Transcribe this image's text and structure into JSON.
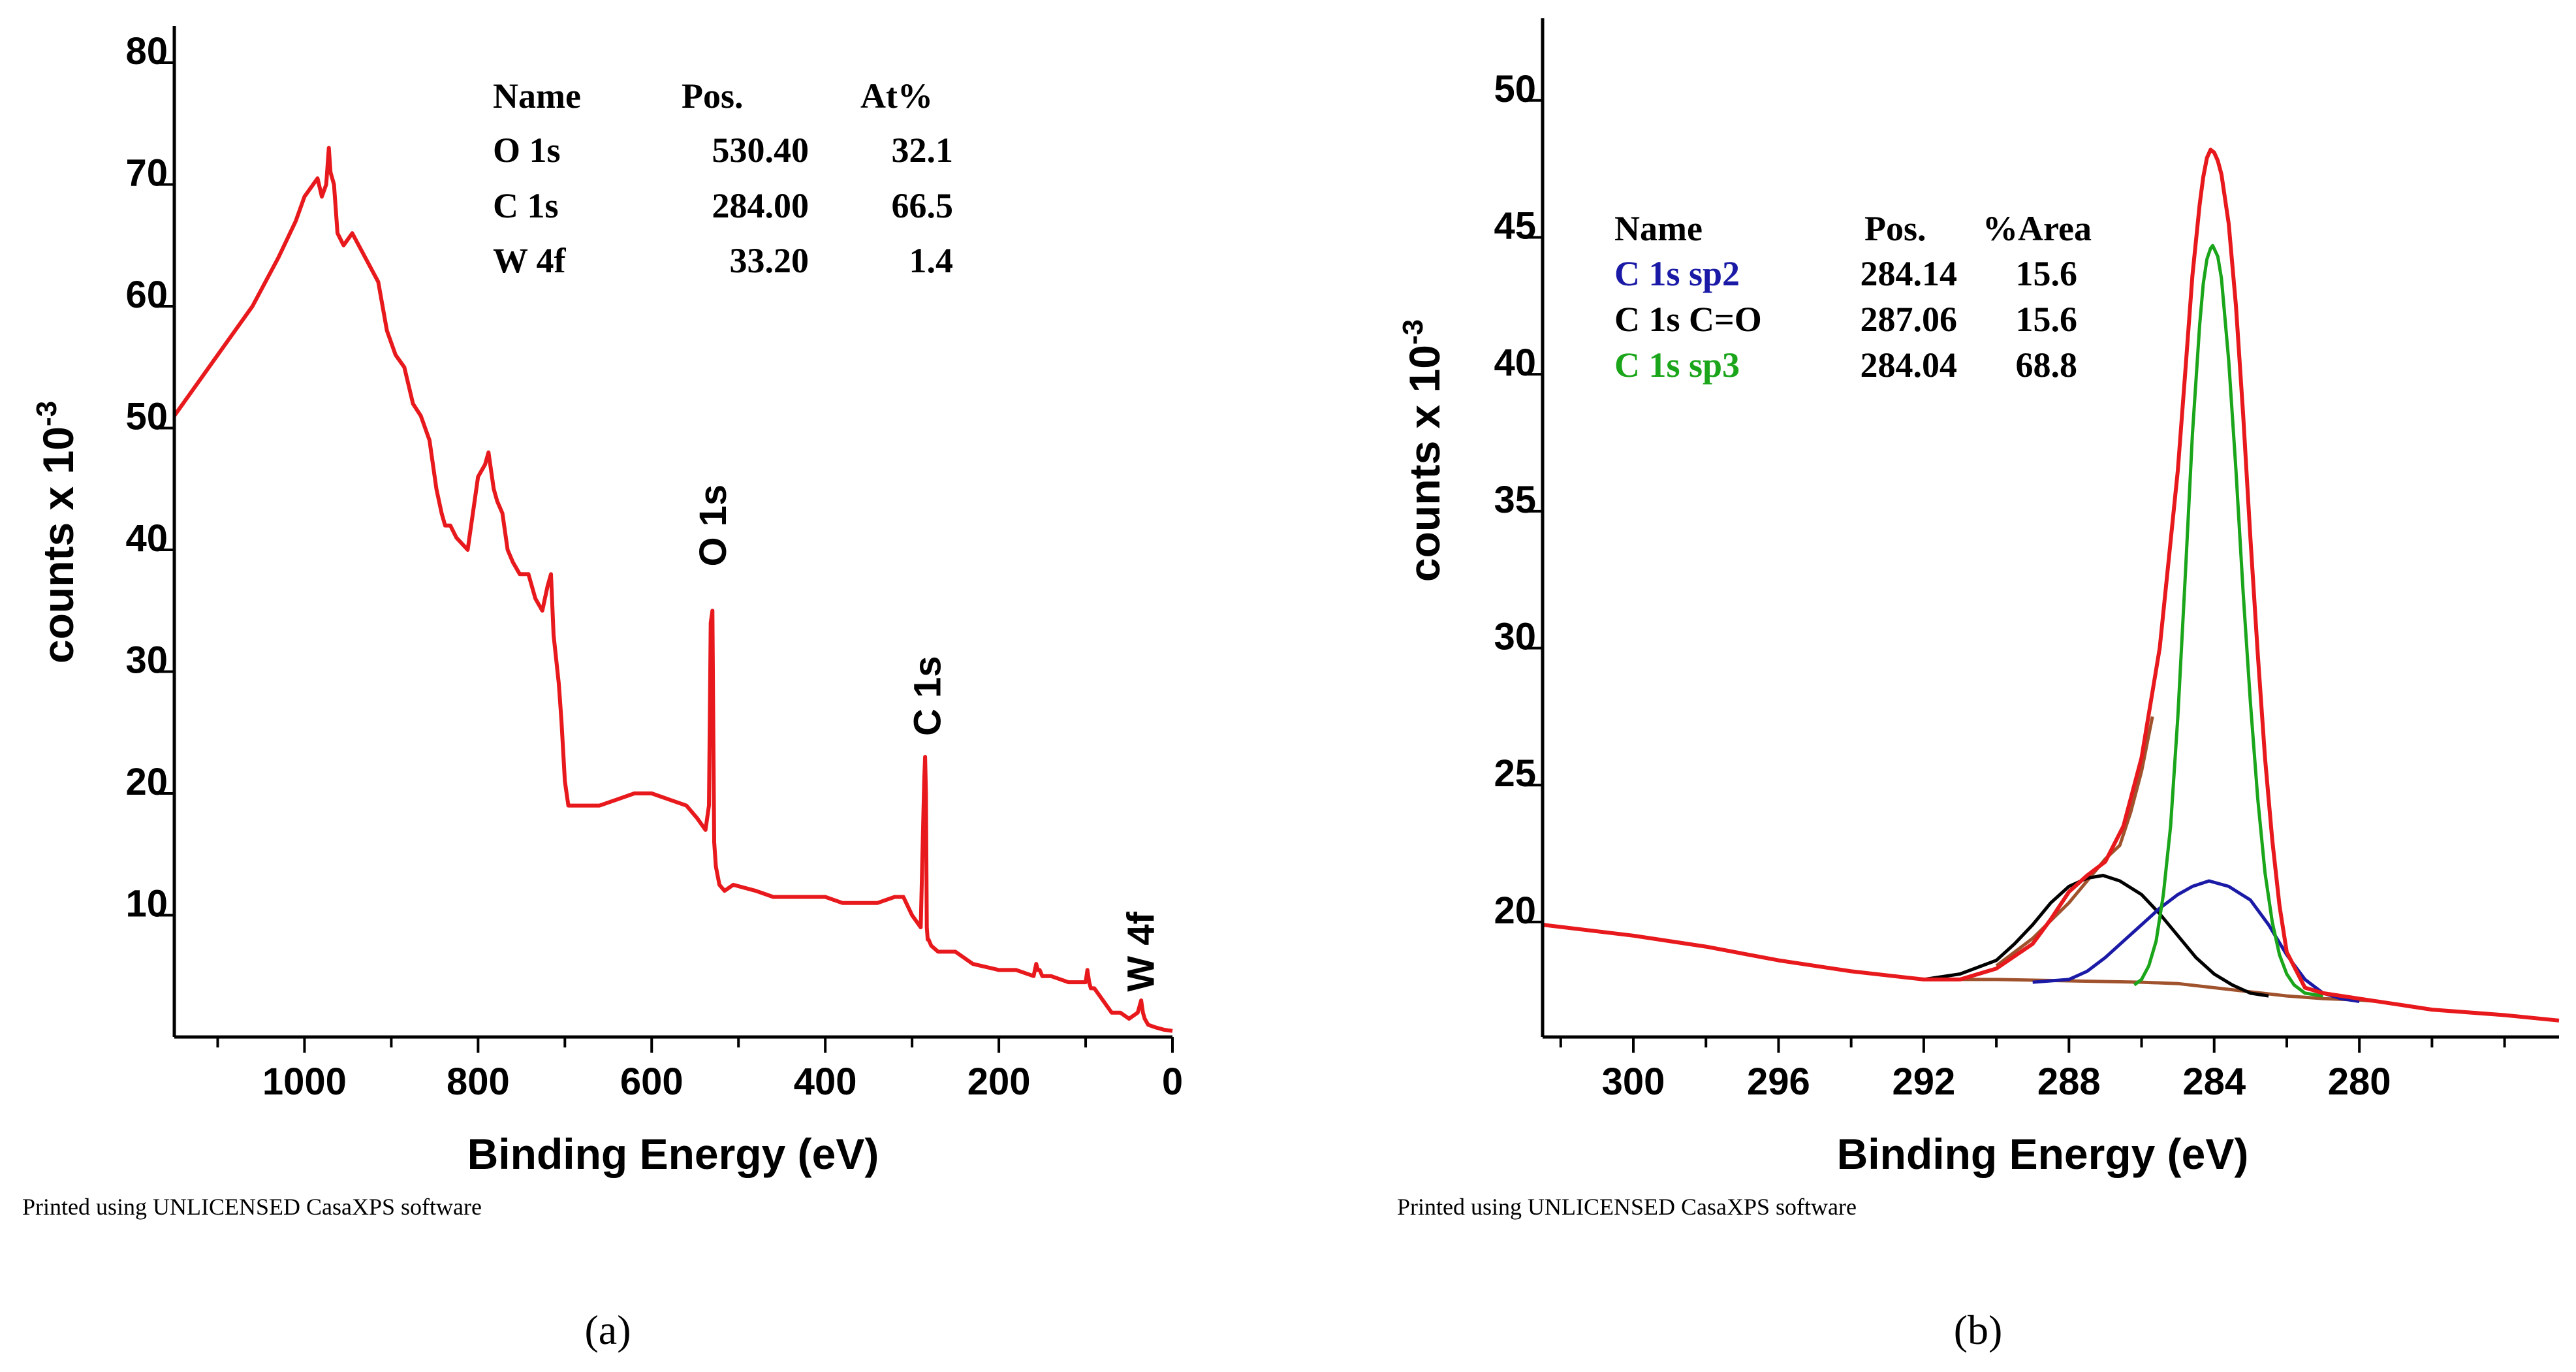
{
  "chart_data": [
    {
      "type": "line",
      "panel_label": "(a)",
      "xlabel": "Binding Energy (eV)",
      "ylabel_base": "counts x 10",
      "ylabel_exp": "-3",
      "xlim": [
        1150,
        0
      ],
      "ylim": [
        0,
        83
      ],
      "xticks": [
        1000,
        800,
        600,
        400,
        200,
        0
      ],
      "yticks": [
        10,
        20,
        30,
        40,
        50,
        60,
        70,
        80
      ],
      "footer": "Printed using UNLICENSED CasaXPS software",
      "peak_labels": [
        {
          "text": "O 1s",
          "x": 531,
          "y": 42
        },
        {
          "text": "C 1s",
          "x": 284,
          "y": 28
        },
        {
          "text": "W 4f",
          "x": 38,
          "y": 7
        }
      ],
      "table": {
        "headers": [
          "Name",
          "Pos.",
          "At%"
        ],
        "rows": [
          [
            "O 1s",
            "530.40",
            "32.1"
          ],
          [
            "C 1s",
            "284.00",
            "66.5"
          ],
          [
            "W 4f",
            "33.20",
            "1.4"
          ]
        ]
      },
      "series": [
        {
          "name": "survey",
          "color": "#e8191c",
          "x": [
            1150,
            1120,
            1090,
            1060,
            1030,
            1010,
            1000,
            990,
            985,
            980,
            975,
            972,
            970,
            966,
            962,
            955,
            945,
            930,
            915,
            905,
            895,
            885,
            875,
            866,
            856,
            848,
            842,
            838,
            832,
            825,
            812,
            800,
            792,
            788,
            782,
            778,
            772,
            766,
            760,
            752,
            742,
            734,
            726,
            720,
            716,
            713,
            710,
            707,
            704,
            700,
            696,
            690,
            680,
            660,
            640,
            620,
            600,
            580,
            560,
            548,
            538,
            534,
            532,
            530,
            528,
            526,
            522,
            516,
            506,
            480,
            460,
            440,
            420,
            400,
            380,
            360,
            340,
            320,
            310,
            300,
            290,
            286,
            285,
            284,
            283,
            282,
            281,
            278,
            270,
            250,
            230,
            200,
            180,
            160,
            157,
            155,
            153,
            150,
            140,
            120,
            100,
            98,
            96,
            94,
            90,
            80,
            70,
            60,
            50,
            40,
            36,
            34,
            32,
            28,
            20,
            10,
            0
          ],
          "y": [
            51,
            54,
            57,
            60,
            64,
            67,
            69,
            70,
            70.5,
            69,
            70,
            73,
            71,
            70,
            66,
            65,
            66,
            64,
            62,
            58,
            56,
            55,
            52,
            51,
            49,
            45,
            43,
            42,
            42,
            41,
            40,
            46,
            47,
            48,
            45,
            44,
            43,
            40,
            39,
            38,
            38,
            36,
            35,
            37,
            38,
            33,
            31,
            29,
            26,
            21,
            19,
            19,
            19,
            19,
            19.5,
            20,
            20,
            19.5,
            19,
            18,
            17,
            19,
            34,
            35,
            16,
            14,
            12.5,
            12,
            12.5,
            12,
            11.5,
            11.5,
            11.5,
            11.5,
            11,
            11,
            11,
            11.5,
            11.5,
            10,
            9,
            21,
            23,
            20,
            9,
            8,
            8,
            7.5,
            7,
            7,
            6,
            5.5,
            5.5,
            5,
            6,
            5.5,
            5.5,
            5,
            5,
            4.5,
            4.5,
            5.5,
            4.5,
            4,
            4,
            3,
            2,
            2,
            1.5,
            2,
            3,
            2,
            1.5,
            1,
            0.8,
            0.6,
            0.5
          ]
        }
      ]
    },
    {
      "type": "line",
      "panel_label": "(b)",
      "xlabel": "Binding Energy (eV)",
      "ylabel_base": "counts x 10",
      "ylabel_exp": "-3",
      "xlim": [
        302.5,
        274.5
      ],
      "ylim": [
        15.8,
        53
      ],
      "xticks": [
        300,
        296,
        292,
        288,
        284,
        280
      ],
      "yticks": [
        20,
        25,
        30,
        35,
        40,
        45,
        50
      ],
      "footer": "Printed using UNLICENSED CasaXPS software",
      "table": {
        "headers": [
          "Name",
          "Pos.",
          "%Area"
        ],
        "rows": [
          {
            "name": "C 1s sp2",
            "pos": "284.14",
            "area": "15.6",
            "color": "#1a1aa6"
          },
          {
            "name": "C 1s C=O",
            "pos": "287.06",
            "area": "15.6",
            "color": "#000000"
          },
          {
            "name": "C 1s sp3",
            "pos": "284.04",
            "area": "68.8",
            "color": "#1aa51a"
          }
        ]
      },
      "series": [
        {
          "name": "measured",
          "color": "#e8191c",
          "x": [
            302.5,
            300,
            298,
            296,
            294,
            292,
            291,
            290,
            289,
            288.5,
            288,
            287.5,
            287,
            286.5,
            286,
            285.5,
            285,
            284.8,
            284.6,
            284.4,
            284.3,
            284.2,
            284.1,
            284.0,
            283.9,
            283.8,
            283.6,
            283.4,
            283.2,
            283,
            282.8,
            282.6,
            282.4,
            282.2,
            282,
            281.5,
            281,
            280,
            279,
            278,
            276,
            274.5
          ],
          "y": [
            19.9,
            19.5,
            19.1,
            18.6,
            18.2,
            17.9,
            17.9,
            18.3,
            19.2,
            20.1,
            21.1,
            21.7,
            22.2,
            23.5,
            26,
            30,
            36.5,
            40,
            43.6,
            46.2,
            47.2,
            47.9,
            48.2,
            48.1,
            47.8,
            47.3,
            45.5,
            42.5,
            38.5,
            34,
            29.8,
            26,
            23,
            20.6,
            18.9,
            17.6,
            17.4,
            17.2,
            17.0,
            16.8,
            16.6,
            16.4
          ]
        },
        {
          "name": "C 1s sp3",
          "color": "#1aa51a",
          "x": [
            286.2,
            286,
            285.8,
            285.6,
            285.4,
            285.2,
            285,
            284.8,
            284.6,
            284.4,
            284.3,
            284.2,
            284.1,
            284.04,
            283.9,
            283.8,
            283.6,
            283.4,
            283.2,
            283,
            282.8,
            282.6,
            282.4,
            282.2,
            282,
            281.8,
            281.5,
            281
          ],
          "y": [
            17.7,
            17.9,
            18.4,
            19.3,
            21,
            23.5,
            27.5,
            32.5,
            37.8,
            41.8,
            43.3,
            44.2,
            44.6,
            44.7,
            44.3,
            43.5,
            40.5,
            36.5,
            32,
            28,
            24.5,
            21.8,
            20,
            18.8,
            18.1,
            17.7,
            17.4,
            17.3
          ]
        },
        {
          "name": "C 1s sp2",
          "color": "#1a1aa6",
          "x": [
            289,
            288,
            287.5,
            287,
            286.5,
            286,
            285.5,
            285,
            284.6,
            284.14,
            283.6,
            283,
            282.5,
            282,
            281.5,
            281,
            280.5,
            280
          ],
          "y": [
            17.8,
            17.9,
            18.2,
            18.7,
            19.3,
            19.9,
            20.5,
            21,
            21.3,
            21.5,
            21.3,
            20.8,
            19.9,
            18.8,
            17.9,
            17.4,
            17.2,
            17.1
          ]
        },
        {
          "name": "C 1s C=O",
          "color": "#000000",
          "x": [
            292,
            291,
            290,
            289.5,
            289,
            288.5,
            288,
            287.5,
            287.06,
            286.6,
            286,
            285.5,
            285,
            284.5,
            284,
            283.5,
            283,
            282.5
          ],
          "y": [
            17.9,
            18.1,
            18.6,
            19.2,
            19.9,
            20.7,
            21.3,
            21.6,
            21.7,
            21.5,
            21,
            20.3,
            19.5,
            18.7,
            18.1,
            17.7,
            17.4,
            17.3
          ]
        },
        {
          "name": "background",
          "color": "#a0522d",
          "x": [
            291.5,
            290,
            288,
            286,
            285,
            284,
            283,
            282,
            281,
            280,
            279.5
          ],
          "y": [
            17.9,
            17.9,
            17.85,
            17.8,
            17.75,
            17.6,
            17.45,
            17.3,
            17.2,
            17.15,
            17.1
          ]
        },
        {
          "name": "envelope",
          "color": "#a0522d",
          "x": [
            290,
            289,
            288,
            287.5,
            287,
            286.6,
            286.3,
            286,
            285.7
          ],
          "y": [
            18.4,
            19.4,
            20.7,
            21.5,
            22.3,
            22.8,
            24,
            25.5,
            27.5
          ]
        }
      ]
    }
  ]
}
